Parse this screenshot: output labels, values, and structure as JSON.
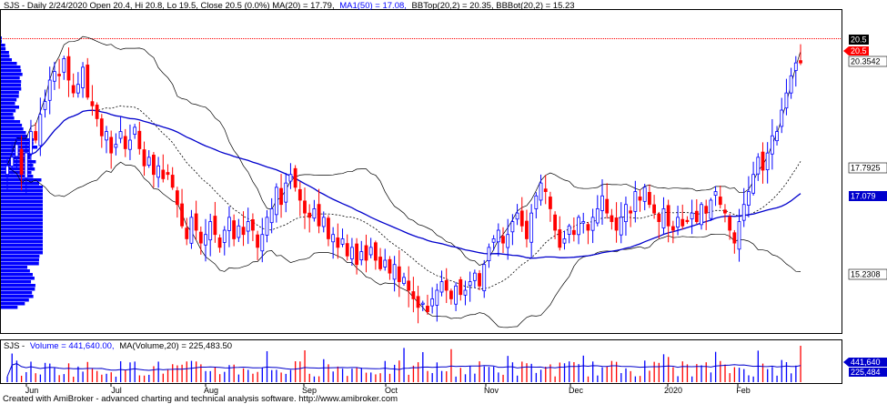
{
  "price_panel": {
    "header_prefix": "SJS - Daily 2/24/2020 Open 20.4, Hi 20.8, Lo 19.5, Close 20.5 (0.0%) MA(20) = 17.79,",
    "header_ma": "MA1(50) = 17.08,",
    "header_bb": "BBTop(20,2) = 20.35, BBBot(20,2) = 15.23"
  },
  "volume_panel": {
    "header_prefix": "SJS -",
    "header_volume": "Volume = 441,640.00,",
    "header_ma": "MA(Volume,20) = 225,483.50"
  },
  "price_labels": {
    "last_close": "20.5",
    "close_marker": "20.5",
    "bbtop": "20.3542",
    "ma20": "17.7925",
    "ma50": "17.079",
    "bbbot": "15.2308"
  },
  "volume_labels": {
    "volume": "441,640",
    "volume_ma": "225,484"
  },
  "footer": "Created with AmiBroker - advanced charting and technical analysis software. http://www.amibroker.com",
  "colors": {
    "up": "#0000ff",
    "down": "#ff0000",
    "ma50": "#0000cc",
    "band": "#000000",
    "ma20": "#000000",
    "profile": "#0000ff",
    "volume_ma": "#0000cc"
  },
  "chart_data": {
    "type": "candlestick",
    "period": "Daily",
    "x_tick_labels": [
      "Jun",
      "Jul",
      "Aug",
      "Sep",
      "Oct",
      "Nov",
      "Dec",
      "2020",
      "Feb"
    ],
    "y_range": [
      14.5,
      21.5
    ],
    "last_bar": {
      "date": "2/24/2020",
      "open": 20.4,
      "high": 20.8,
      "low": 19.5,
      "close": 20.5,
      "change_pct": 0.0
    },
    "indicators": {
      "MA20": 17.79,
      "MA50": 17.08,
      "BBTop": 20.35,
      "BBBot": 15.23,
      "volume": 441640,
      "volume_ma20": 225483.5
    },
    "closes": [
      18.1,
      18.3,
      18.6,
      17.9,
      18.4,
      18.9,
      18.7,
      19.3,
      19.6,
      20.1,
      20.3,
      20.2,
      20.6,
      20.1,
      19.8,
      20.0,
      20.4,
      19.7,
      19.5,
      19.2,
      18.8,
      18.9,
      18.4,
      18.6,
      18.9,
      18.5,
      18.7,
      19.0,
      18.5,
      18.1,
      18.3,
      17.9,
      18.1,
      17.8,
      17.9,
      17.6,
      17.2,
      16.7,
      16.4,
      16.9,
      16.6,
      16.3,
      16.5,
      16.8,
      16.5,
      16.2,
      16.6,
      16.9,
      16.4,
      16.7,
      16.5,
      16.8,
      16.6,
      16.2,
      16.5,
      16.9,
      17.1,
      17.6,
      17.2,
      17.7,
      17.9,
      17.6,
      17.3,
      17.0,
      16.9,
      17.1,
      16.7,
      16.9,
      16.4,
      16.5,
      16.2,
      16.4,
      16.0,
      16.2,
      15.8,
      16.1,
      15.9,
      16.2,
      15.9,
      15.7,
      15.9,
      15.6,
      15.8,
      15.4,
      15.5,
      15.2,
      15.0,
      14.8,
      14.9,
      14.7,
      15.0,
      15.2,
      15.4,
      15.2,
      15.0,
      15.3,
      15.1,
      15.2,
      15.4,
      15.6,
      15.3,
      15.8,
      16.2,
      16.4,
      16.6,
      16.3,
      16.5,
      16.8,
      17.0,
      16.7,
      16.4,
      17.0,
      17.4,
      17.7,
      17.5,
      17.1,
      16.6,
      16.2,
      16.4,
      16.7,
      16.5,
      16.9,
      16.8,
      16.6,
      16.9,
      17.1,
      17.4,
      17.0,
      16.8,
      16.6,
      16.9,
      17.2,
      17.0,
      17.5,
      17.3,
      17.6,
      17.2,
      17.0,
      16.8,
      17.1,
      16.7,
      16.6,
      16.9,
      16.7,
      16.8,
      17.0,
      16.8,
      17.2,
      17.0,
      17.3,
      17.5,
      17.2,
      17.0,
      16.6,
      16.3,
      16.8,
      17.2,
      17.5,
      17.9,
      18.3,
      18.0,
      18.4,
      18.8,
      18.9,
      19.4,
      19.8,
      20.2,
      20.5,
      20.5
    ]
  }
}
